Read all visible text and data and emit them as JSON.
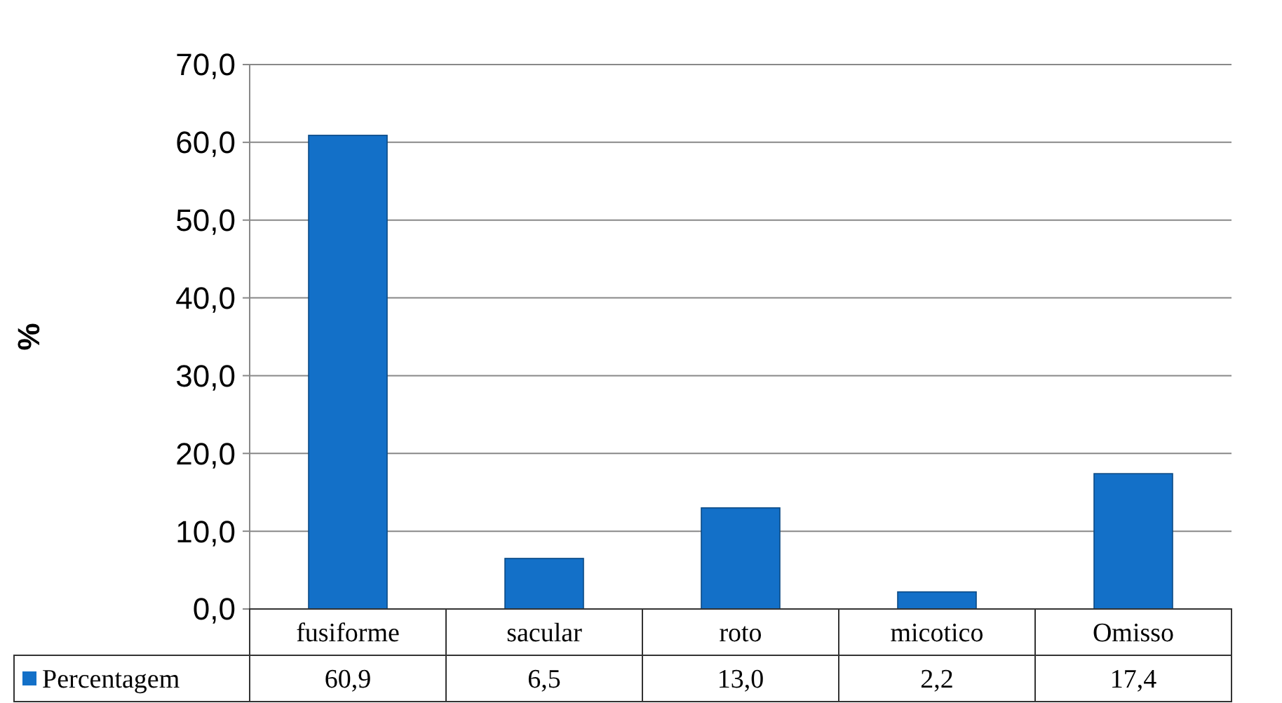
{
  "chart_data": {
    "type": "bar",
    "ylabel": "%",
    "categories": [
      "fusiforme",
      "sacular",
      "roto",
      "micotico",
      "Omisso"
    ],
    "series": [
      {
        "name": "Percentagem",
        "color": "#1370c8",
        "values": [
          60.9,
          6.5,
          13.0,
          2.2,
          17.4
        ],
        "value_labels": [
          "60,9",
          "6,5",
          "13,0",
          "2,2",
          "17,4"
        ]
      }
    ],
    "ylim": [
      0,
      70
    ],
    "yticks": [
      {
        "value": 0,
        "label": "0,0"
      },
      {
        "value": 10,
        "label": "10,0"
      },
      {
        "value": 20,
        "label": "20,0"
      },
      {
        "value": 30,
        "label": "30,0"
      },
      {
        "value": 40,
        "label": "40,0"
      },
      {
        "value": 50,
        "label": "50,0"
      },
      {
        "value": 60,
        "label": "60,0"
      },
      {
        "value": 70,
        "label": "70,0"
      }
    ],
    "grid": "y",
    "legend": "bottom"
  }
}
